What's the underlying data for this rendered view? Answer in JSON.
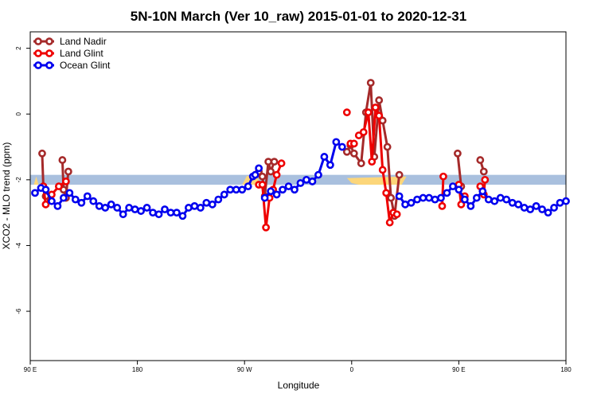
{
  "chart_data": {
    "type": "line",
    "title": "5N-10N March (Ver 10_raw)   2015-01-01 to 2020-12-31",
    "xlabel": "Longitude",
    "ylabel": "XCO2 - MLO trend (ppm)",
    "x_ticks": [
      {
        "value": 90,
        "label": "90 E"
      },
      {
        "value": 180,
        "label": "180"
      },
      {
        "value": 270,
        "label": "90 W"
      },
      {
        "value": 360,
        "label": "0"
      },
      {
        "value": 450,
        "label": "90 E"
      },
      {
        "value": 540,
        "label": "180"
      }
    ],
    "y_ticks": [
      {
        "value": 2,
        "label": "2"
      },
      {
        "value": 0,
        "label": "0"
      },
      {
        "value": -2,
        "label": "-2"
      },
      {
        "value": -4,
        "label": "-4"
      },
      {
        "value": -6,
        "label": "-6"
      }
    ],
    "xlim": [
      90,
      540
    ],
    "ylim": [
      -7.5,
      2.5
    ],
    "grid": false,
    "legend_position": "top-left",
    "reference_band": {
      "y_min": -2.15,
      "y_max": -1.85,
      "color": "#a9c0de"
    },
    "yellow_fill": {
      "color": "#fcd67a",
      "segments": [
        {
          "x": [
            93,
            95,
            97
          ],
          "y": [
            -2.15,
            -1.9,
            -2.15
          ]
        },
        {
          "x": [
            268,
            272,
            276,
            280,
            284
          ],
          "y": [
            -2.15,
            -1.88,
            -1.9,
            -1.88,
            -2.15
          ]
        },
        {
          "x": [
            356,
            360,
            366,
            372,
            378,
            384,
            390,
            396,
            402,
            406
          ],
          "y": [
            -1.95,
            -2.1,
            -2.15,
            -2.15,
            -2.15,
            -2.15,
            -2.15,
            -2.15,
            -2.15,
            -1.9
          ]
        }
      ]
    },
    "series": [
      {
        "name": "Land Nadir",
        "color": "#a52a2a",
        "segments": [
          {
            "x": [
              100,
              101,
              103
            ],
            "y": [
              -1.2,
              -2.2,
              -2.5
            ]
          },
          {
            "x": [
              117,
              118,
              120,
              122
            ],
            "y": [
              -1.4,
              -2.3,
              -2.55,
              -1.75
            ]
          },
          {
            "x": [
              282,
              285,
              287,
              290,
              292,
              295
            ],
            "y": [
              -1.75,
              -1.9,
              -2.5,
              -1.45,
              -1.75,
              -1.45
            ]
          },
          {
            "x": [
              356,
              359,
              362,
              368,
              372,
              376,
              379,
              383,
              386,
              390,
              393,
              396,
              400
            ],
            "y": [
              -1.15,
              -0.95,
              -1.2,
              -1.5,
              0.05,
              0.95,
              -1.3,
              0.42,
              -0.2,
              -1.0,
              -2.55,
              -3.1,
              -1.85
            ]
          },
          {
            "x": [
              449,
              452
            ],
            "y": [
              -1.2,
              -2.2
            ]
          },
          {
            "x": [
              468,
              471
            ],
            "y": [
              -1.4,
              -1.75
            ]
          }
        ]
      },
      {
        "name": "Land Glint",
        "color": "#ee0000",
        "segments": [
          {
            "x": [
              101,
              103,
              108,
              114,
              120
            ],
            "y": [
              -2.2,
              -2.75,
              -2.45,
              -2.2,
              -2.05
            ]
          },
          {
            "x": [
              282,
              285,
              288,
              291,
              294,
              297,
              301
            ],
            "y": [
              -2.15,
              -2.15,
              -3.45,
              -2.55,
              -2.3,
              -1.85,
              -1.5
            ]
          },
          {
            "x": [
              356
            ],
            "y": [
              0.05
            ]
          },
          {
            "x": [
              359,
              362
            ],
            "y": [
              -0.9,
              -0.9
            ]
          },
          {
            "x": [
              366,
              370,
              374,
              377,
              380,
              383,
              386,
              389,
              392,
              395,
              398
            ],
            "y": [
              -0.65,
              -0.55,
              0.05,
              -1.45,
              0.2,
              -0.05,
              -1.7,
              -2.4,
              -3.3,
              -3.0,
              -3.05
            ]
          },
          {
            "x": [
              436,
              437
            ],
            "y": [
              -2.8,
              -1.9
            ]
          },
          {
            "x": [
              450,
              452,
              455
            ],
            "y": [
              -2.15,
              -2.75,
              -2.5
            ]
          },
          {
            "x": [
              468,
              471,
              472
            ],
            "y": [
              -2.2,
              -2.45,
              -2.0
            ]
          }
        ]
      },
      {
        "name": "Ocean Glint",
        "color": "#0000ee",
        "segments": [
          {
            "x": [
              94,
              99,
              103,
              108,
              113,
              118,
              123,
              128,
              133,
              138,
              143,
              148,
              153,
              158,
              163,
              168,
              173,
              178,
              183,
              188,
              193,
              198,
              203,
              208,
              213,
              218,
              223,
              228,
              233,
              238,
              243,
              248,
              253,
              258,
              263,
              268,
              273,
              277,
              279,
              282
            ],
            "y": [
              -2.4,
              -2.25,
              -2.3,
              -2.65,
              -2.8,
              -2.55,
              -2.4,
              -2.6,
              -2.7,
              -2.5,
              -2.65,
              -2.8,
              -2.85,
              -2.75,
              -2.85,
              -3.05,
              -2.85,
              -2.9,
              -2.95,
              -2.85,
              -3.0,
              -3.05,
              -2.9,
              -3.0,
              -3.0,
              -3.1,
              -2.85,
              -2.8,
              -2.85,
              -2.7,
              -2.75,
              -2.6,
              -2.45,
              -2.3,
              -2.3,
              -2.3,
              -2.2,
              -1.9,
              -1.85,
              -1.65
            ]
          },
          {
            "x": [
              287,
              292,
              297,
              302,
              307,
              312,
              317,
              322,
              327,
              332,
              337,
              342,
              347,
              352
            ],
            "y": [
              -2.55,
              -2.35,
              -2.45,
              -2.3,
              -2.2,
              -2.3,
              -2.1,
              -2.0,
              -2.05,
              -1.85,
              -1.3,
              -1.55,
              -0.85,
              -1.0
            ]
          },
          {
            "x": [
              400,
              405,
              410,
              415,
              420,
              425,
              430,
              435,
              440,
              445,
              450,
              455,
              460,
              465,
              470,
              475,
              480,
              485,
              490,
              495,
              500,
              505,
              510,
              515,
              520,
              525,
              530,
              535,
              540
            ],
            "y": [
              -2.5,
              -2.75,
              -2.7,
              -2.6,
              -2.55,
              -2.55,
              -2.6,
              -2.55,
              -2.4,
              -2.2,
              -2.3,
              -2.6,
              -2.8,
              -2.55,
              -2.35,
              -2.6,
              -2.65,
              -2.55,
              -2.6,
              -2.7,
              -2.75,
              -2.85,
              -2.9,
              -2.8,
              -2.9,
              -3.0,
              -2.85,
              -2.7,
              -2.65
            ]
          }
        ]
      }
    ]
  }
}
